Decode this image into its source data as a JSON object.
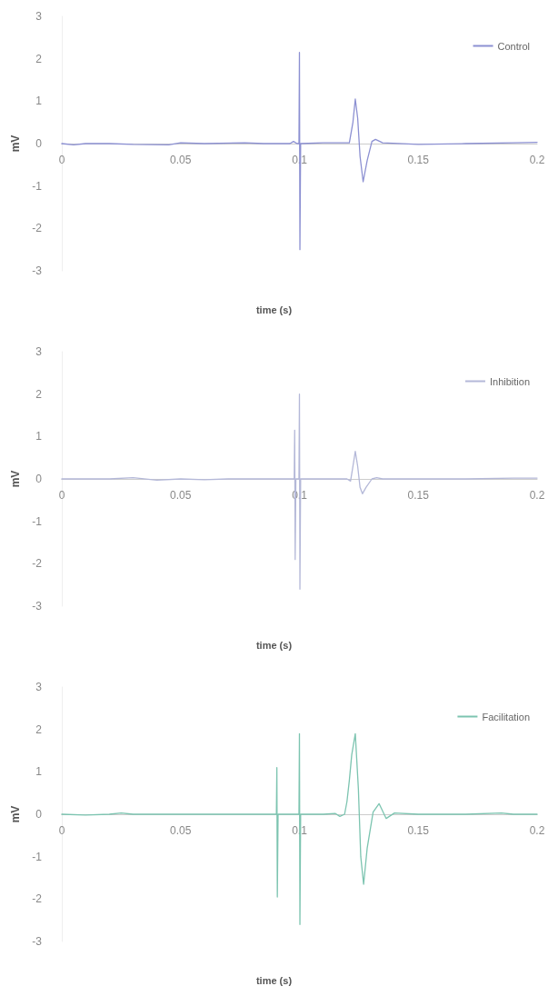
{
  "chart_data": [
    {
      "type": "line",
      "xlabel": "time (s)",
      "ylabel": "mV",
      "xlim": [
        0,
        0.2
      ],
      "ylim": [
        -3,
        3
      ],
      "xticks": [
        0,
        0.05,
        0.1,
        0.15,
        0.2
      ],
      "yticks": [
        -3,
        -2,
        -1,
        0,
        1,
        2,
        3
      ],
      "grid": false,
      "legend": "top right",
      "marker": "none",
      "line_style": "solid",
      "series": [
        {
          "name": "Control",
          "color": "#8c90d2",
          "x": [
            0,
            0.005,
            0.01,
            0.02,
            0.03,
            0.045,
            0.05,
            0.06,
            0.077,
            0.085,
            0.096,
            0.0975,
            0.099,
            0.0998,
            0.1,
            0.1002,
            0.1005,
            0.11,
            0.121,
            0.1225,
            0.1235,
            0.1245,
            0.1255,
            0.1268,
            0.1285,
            0.1305,
            0.132,
            0.135,
            0.15,
            0.17,
            0.19,
            0.2
          ],
          "values": [
            0,
            -0.03,
            0,
            0,
            -0.02,
            -0.03,
            0.02,
            0,
            0.02,
            0,
            0,
            0.05,
            0,
            0,
            2.15,
            -2.5,
            0,
            0.02,
            0.02,
            0.5,
            1.05,
            0.6,
            -0.3,
            -0.9,
            -0.4,
            0.05,
            0.1,
            0.02,
            -0.02,
            0,
            0.02,
            0.03
          ]
        }
      ]
    },
    {
      "type": "line",
      "xlabel": "time (s)",
      "ylabel": "mV",
      "xlim": [
        0,
        0.2
      ],
      "ylim": [
        -3,
        3
      ],
      "xticks": [
        0,
        0.05,
        0.1,
        0.15,
        0.2
      ],
      "yticks": [
        -3,
        -2,
        -1,
        0,
        1,
        2,
        3
      ],
      "grid": false,
      "legend": "top right",
      "marker": "none",
      "line_style": "solid",
      "series": [
        {
          "name": "Inhibition",
          "color": "#b4b8d8",
          "x": [
            0,
            0.01,
            0.02,
            0.03,
            0.04,
            0.05,
            0.06,
            0.07,
            0.08,
            0.09,
            0.0978,
            0.098,
            0.0982,
            0.0985,
            0.0998,
            0.1,
            0.1002,
            0.1005,
            0.11,
            0.12,
            0.1215,
            0.1228,
            0.1235,
            0.1245,
            0.1255,
            0.1265,
            0.128,
            0.1305,
            0.1325,
            0.135,
            0.15,
            0.17,
            0.19,
            0.2
          ],
          "values": [
            0,
            0,
            0,
            0.03,
            -0.03,
            0,
            -0.02,
            0,
            0,
            0,
            0,
            1.15,
            -1.9,
            0,
            0,
            2.0,
            -2.6,
            0,
            0,
            0,
            -0.05,
            0.4,
            0.65,
            0.3,
            -0.2,
            -0.35,
            -0.2,
            0,
            0.03,
            0,
            0,
            0,
            0.02,
            0.02
          ]
        }
      ]
    },
    {
      "type": "line",
      "xlabel": "time (s)",
      "ylabel": "mV",
      "xlim": [
        0,
        0.2
      ],
      "ylim": [
        -3,
        3
      ],
      "xticks": [
        0,
        0.05,
        0.1,
        0.15,
        0.2
      ],
      "yticks": [
        -3,
        -2,
        -1,
        0,
        1,
        2,
        3
      ],
      "grid": false,
      "legend": "top right",
      "marker": "none",
      "line_style": "solid",
      "series": [
        {
          "name": "Facilitation",
          "color": "#7cc4b0",
          "x": [
            0,
            0.01,
            0.02,
            0.025,
            0.03,
            0.05,
            0.07,
            0.09,
            0.0903,
            0.0905,
            0.0907,
            0.091,
            0.0998,
            0.1,
            0.1002,
            0.1005,
            0.11,
            0.115,
            0.117,
            0.119,
            0.12,
            0.121,
            0.122,
            0.1235,
            0.1248,
            0.1258,
            0.127,
            0.1285,
            0.131,
            0.1335,
            0.1365,
            0.14,
            0.15,
            0.17,
            0.185,
            0.19,
            0.2
          ],
          "values": [
            0,
            -0.02,
            0,
            0.03,
            0,
            0,
            0,
            0,
            0,
            1.1,
            -1.95,
            0,
            0,
            1.9,
            -2.6,
            0,
            0,
            0.02,
            -0.05,
            0,
            0.3,
            0.8,
            1.4,
            1.9,
            0.6,
            -1.0,
            -1.65,
            -0.8,
            0.05,
            0.25,
            -0.1,
            0.03,
            0,
            0,
            0.03,
            0,
            0
          ]
        }
      ]
    }
  ]
}
